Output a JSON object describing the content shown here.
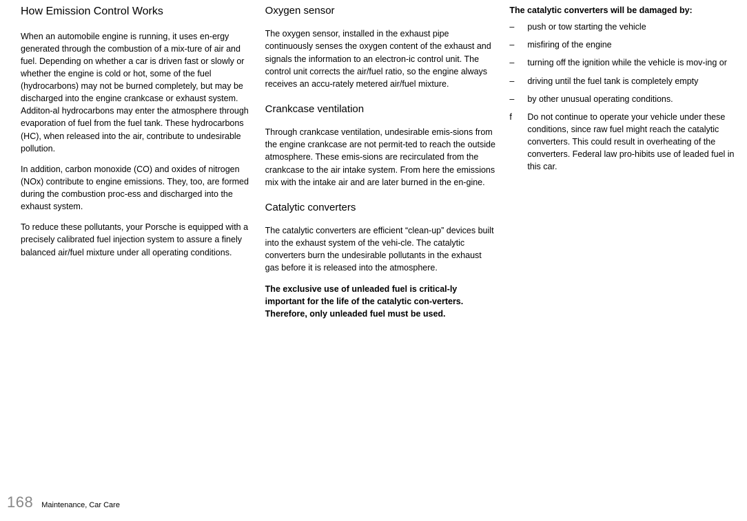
{
  "col1": {
    "heading": "How Emission Control Works",
    "p1": "When an automobile engine is running, it uses en-ergy generated through the combustion of a mix-ture of air and fuel. Depending on whether a car is driven fast or slowly or whether the engine is cold or hot, some of the fuel (hydrocarbons) may not be burned completely, but may be discharged into the engine crankcase or exhaust system. Additon-al hydrocarbons may enter the atmosphere through evaporation of fuel from the fuel tank. These hydrocarbons (HC), when released into the air, contribute to undesirable pollution.",
    "p2": "In addition, carbon monoxide (CO) and oxides of nitrogen (NOx) contribute to engine emissions. They, too, are formed during the combustion proc-ess and discharged into the exhaust system.",
    "p3": "To reduce these pollutants, your Porsche is equipped with a precisely calibrated fuel injection system to assure a finely balanced air/fuel mixture under all operating conditions."
  },
  "col2": {
    "h1": "Oxygen sensor",
    "p1": "The oxygen sensor, installed in the exhaust pipe continuously senses the oxygen content of the exhaust and signals the information to an electron-ic control unit. The control unit corrects the air/fuel ratio, so the engine always receives an accu-rately metered air/fuel mixture.",
    "h2": "Crankcase ventilation",
    "p2": "Through crankcase ventilation, undesirable emis-sions from the engine crankcase are not permit-ted to reach the outside atmosphere. These emis-sions are recirculated from the crankcase to the air intake system. From here the emissions mix with the intake air and are later burned in the en-gine.",
    "h3": "Catalytic converters",
    "p3": "The catalytic converters are efficient “clean-up” devices built into the exhaust system of the vehi-cle. The catalytic converters burn the undesirable pollutants in the exhaust gas before it is released into the atmosphere.",
    "p4": "The exclusive use of unleaded fuel is critical-ly important for the life of the catalytic con-verters. Therefore, only unleaded fuel must be used."
  },
  "col3": {
    "heading": "The catalytic converters will be damaged by:",
    "items": [
      {
        "marker": "–",
        "text": "push or tow starting the vehicle"
      },
      {
        "marker": "–",
        "text": "misfiring of the engine"
      },
      {
        "marker": "–",
        "text": "turning off the ignition while the vehicle is mov-ing or"
      },
      {
        "marker": "–",
        "text": "driving until the fuel tank is completely empty"
      },
      {
        "marker": "–",
        "text": "by other unusual operating conditions."
      },
      {
        "marker": "f",
        "text": "Do not continue to operate your vehicle under these conditions, since raw fuel might reach the catalytic converters. This could result in overheating of the converters. Federal law pro-hibits use of leaded fuel in this car."
      }
    ]
  },
  "footer": {
    "pageNumber": "168",
    "text": "Maintenance, Car Care"
  }
}
